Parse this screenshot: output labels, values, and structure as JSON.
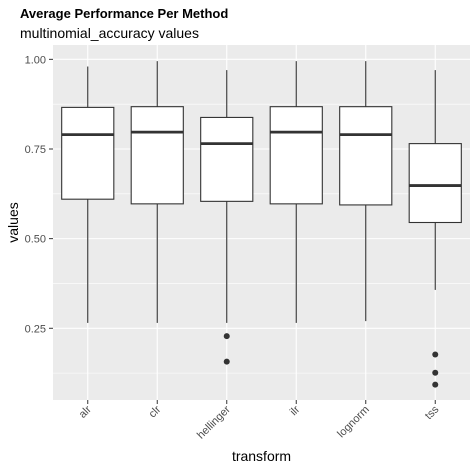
{
  "chart_data": {
    "type": "box",
    "title": "Average Performance Per Method",
    "subtitle": "multinomial_accuracy values",
    "xlabel": "transform",
    "ylabel": "values",
    "ylim": [
      0.05,
      1.04
    ],
    "yticks": [
      0.25,
      0.5,
      0.75,
      1.0
    ],
    "ytick_labels": [
      "0.25",
      "0.50",
      "0.75",
      "1.00"
    ],
    "grid": true,
    "categories": [
      "alr",
      "clr",
      "hellinger",
      "ilr",
      "lognorm",
      "tss"
    ],
    "boxes": [
      {
        "category": "alr",
        "whisker_low": 0.265,
        "q1": 0.61,
        "median": 0.79,
        "q3": 0.866,
        "whisker_high": 0.98,
        "outliers": []
      },
      {
        "category": "clr",
        "whisker_low": 0.265,
        "q1": 0.597,
        "median": 0.797,
        "q3": 0.868,
        "whisker_high": 0.995,
        "outliers": []
      },
      {
        "category": "hellinger",
        "whisker_low": 0.265,
        "q1": 0.604,
        "median": 0.765,
        "q3": 0.838,
        "whisker_high": 0.97,
        "outliers": [
          0.228,
          0.157
        ]
      },
      {
        "category": "ilr",
        "whisker_low": 0.265,
        "q1": 0.597,
        "median": 0.797,
        "q3": 0.868,
        "whisker_high": 0.995,
        "outliers": []
      },
      {
        "category": "lognorm",
        "whisker_low": 0.27,
        "q1": 0.594,
        "median": 0.79,
        "q3": 0.868,
        "whisker_high": 0.995,
        "outliers": []
      },
      {
        "category": "tss",
        "whisker_low": 0.357,
        "q1": 0.545,
        "median": 0.648,
        "q3": 0.765,
        "whisker_high": 0.97,
        "outliers": [
          0.177,
          0.126,
          0.093
        ]
      }
    ],
    "colors": {
      "panel_background": "#ebebeb",
      "grid_major": "#ffffff",
      "box_fill": "#ffffff",
      "box_stroke": "#333333",
      "outlier": "#333333"
    }
  }
}
